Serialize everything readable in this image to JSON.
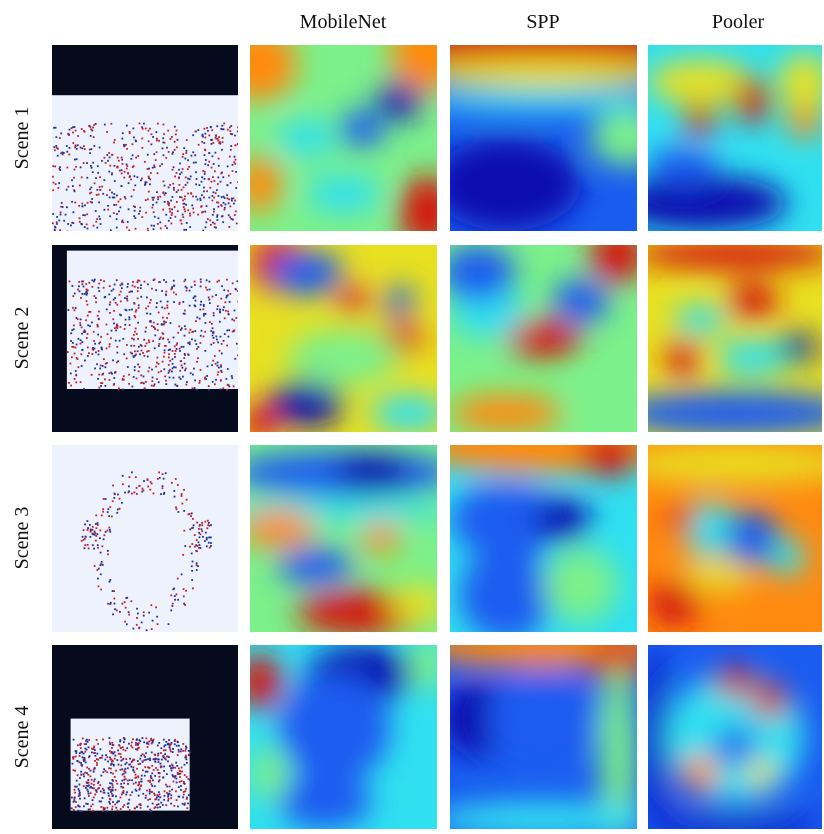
{
  "columns": [
    "MobileNet",
    "SPP",
    "Pooler"
  ],
  "rows": [
    "Scene 1",
    "Scene 2",
    "Scene 3",
    "Scene 4"
  ]
}
